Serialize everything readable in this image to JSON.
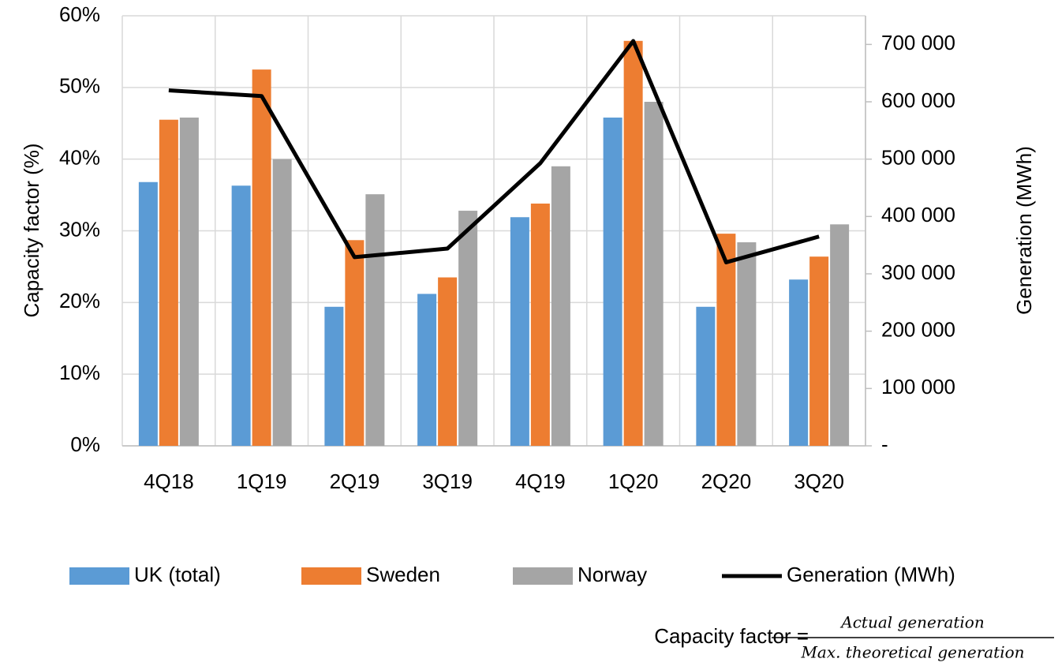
{
  "chart_data": {
    "type": "bar",
    "categories": [
      "4Q18",
      "1Q19",
      "2Q19",
      "3Q19",
      "4Q19",
      "1Q20",
      "2Q20",
      "3Q20"
    ],
    "series": [
      {
        "name": "UK (total)",
        "color": "#5b9bd5",
        "values": [
          36.8,
          36.3,
          19.4,
          21.2,
          31.9,
          45.8,
          19.4,
          23.2
        ]
      },
      {
        "name": "Sweden",
        "color": "#ed7d31",
        "values": [
          45.5,
          52.5,
          28.7,
          23.5,
          33.8,
          56.5,
          29.6,
          26.4
        ]
      },
      {
        "name": "Norway",
        "color": "#a5a5a5",
        "values": [
          45.8,
          40.0,
          35.1,
          32.8,
          39.0,
          48.0,
          28.4,
          30.9
        ]
      },
      {
        "name": "Generation (MWh)",
        "color": "#000000",
        "type": "line",
        "axis": "y2",
        "values": [
          620000,
          610000,
          329000,
          344000,
          493000,
          706000,
          320000,
          365000
        ]
      }
    ],
    "ylabel": "Capacity factor (%)",
    "y2label": "Generation (MWh)",
    "ylim": [
      0,
      60
    ],
    "yticks": [
      {
        "value": 0,
        "label": "0%"
      },
      {
        "value": 10,
        "label": "10%"
      },
      {
        "value": 20,
        "label": "20%"
      },
      {
        "value": 30,
        "label": "30%"
      },
      {
        "value": 40,
        "label": "40%"
      },
      {
        "value": 50,
        "label": "50%"
      },
      {
        "value": 60,
        "label": "60%"
      }
    ],
    "y2lim": [
      0,
      750000
    ],
    "y2ticks": [
      {
        "value": 0,
        "label": "-"
      },
      {
        "value": 100000,
        "label": "100 000"
      },
      {
        "value": 200000,
        "label": "200 000"
      },
      {
        "value": 300000,
        "label": "300 000"
      },
      {
        "value": 400000,
        "label": "400 000"
      },
      {
        "value": 500000,
        "label": "500 000"
      },
      {
        "value": 600000,
        "label": "600 000"
      },
      {
        "value": 700000,
        "label": "700 000"
      }
    ],
    "grid": true,
    "legend": "bottom",
    "annotations": [
      "Capacity factor =",
      "Actual generation",
      "Max. theoretical generation"
    ]
  }
}
